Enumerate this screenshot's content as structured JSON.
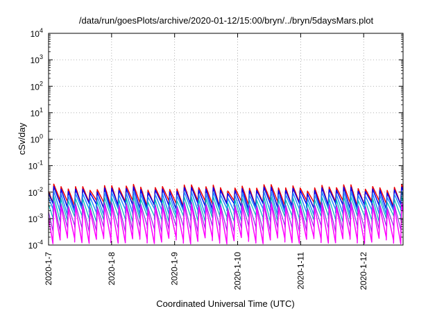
{
  "chart_data": {
    "type": "line",
    "title": "/data/run/goesPlots/archive/2020-01-12/15:00/bryn/../bryn/5daysMars.plot",
    "xlabel": "Coordinated Universal Time (UTC)",
    "ylabel": "cSv/day",
    "yscale": "log",
    "ylim_exponents": [
      -4,
      4
    ],
    "y_tick_base": "10",
    "y_tick_exponents": [
      "-4",
      "-3",
      "-2",
      "-1",
      "0",
      "1",
      "2",
      "3",
      "4"
    ],
    "xlim": [
      "2020-01-07",
      "2020-01-12T15:00"
    ],
    "x_tick_labels": [
      "2020-1-7",
      "2020-1-8",
      "2020-1-9",
      "2020-1-10",
      "2020-1-11",
      "2020-1-12"
    ],
    "grid": true,
    "sawtooth_period_hours": 2.76,
    "series": [
      {
        "color": "#ee0000",
        "peak": 0.0155,
        "trough": 0.0045,
        "width": 1.5
      },
      {
        "color": "#0000ee",
        "peak": 0.0125,
        "trough": 0.0035,
        "width": 1.5
      },
      {
        "color": "#2288ff",
        "peak": 0.0085,
        "trough": 0.0022,
        "width": 1.5
      },
      {
        "color": "#00b8b8",
        "peak": 0.0055,
        "trough": 0.0012,
        "width": 1.2
      },
      {
        "color": "#8a2be2",
        "peak": 0.0035,
        "trough": 0.0005,
        "width": 1.2
      },
      {
        "color": "#ff00ff",
        "peak": 0.0028,
        "trough": 0.00018,
        "width": 1.5
      }
    ]
  }
}
